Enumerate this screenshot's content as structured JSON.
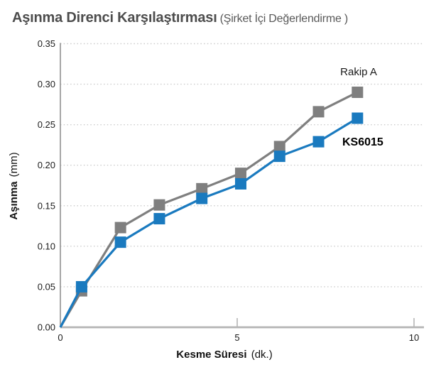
{
  "header": {
    "title": "Aşınma Direnci Karşılaştırması",
    "subtitle": "(Şirket İçi Değerlendirme )"
  },
  "chart_data": {
    "type": "line",
    "title": "Aşınma Direnci Karşılaştırması (Şirket İçi Değerlendirme )",
    "xlabel": "Kesme Süresi",
    "xlabel_unit": "(dk.)",
    "ylabel": "Aşınma",
    "ylabel_unit": "(mm)",
    "xlim": [
      0,
      10.3
    ],
    "ylim": [
      0,
      0.35
    ],
    "grid": "horizontal-dotted",
    "legend_position": "inline-labels-on-chart",
    "x": [
      0,
      0.6,
      1.7,
      2.8,
      4.0,
      5.1,
      6.2,
      7.3,
      8.4
    ],
    "series": [
      {
        "name": "Rakip A",
        "color": "#7f7f7f",
        "marker": "square",
        "values": [
          0,
          0.045,
          0.123,
          0.151,
          0.171,
          0.19,
          0.223,
          0.266,
          0.29
        ]
      },
      {
        "name": "KS6015",
        "color": "#1a7abf",
        "marker": "square",
        "values": [
          0,
          0.05,
          0.105,
          0.134,
          0.159,
          0.177,
          0.211,
          0.229,
          0.258
        ]
      }
    ],
    "x_ticks": [
      {
        "value": 0,
        "label": "0"
      },
      {
        "value": 5,
        "label": "5"
      },
      {
        "value": 10,
        "label": "10"
      }
    ],
    "y_ticks": [
      {
        "value": 0.0,
        "label": "0.00"
      },
      {
        "value": 0.05,
        "label": "0.05"
      },
      {
        "value": 0.1,
        "label": "0.10"
      },
      {
        "value": 0.15,
        "label": "0.15"
      },
      {
        "value": 0.2,
        "label": "0.20"
      },
      {
        "value": 0.25,
        "label": "0.25"
      },
      {
        "value": 0.3,
        "label": "0.30"
      },
      {
        "value": 0.35,
        "label": "0.35"
      }
    ]
  },
  "colors": {
    "competitor_series": "#7f7f7f",
    "ks6015_series": "#1a7abf",
    "x_axis_line": "#b5b5b5",
    "y_axis_line": "#8f8f8f",
    "gridline": "#cccccc",
    "tick_label": "#1a1a1a",
    "title_text": "#4d4d4d"
  }
}
